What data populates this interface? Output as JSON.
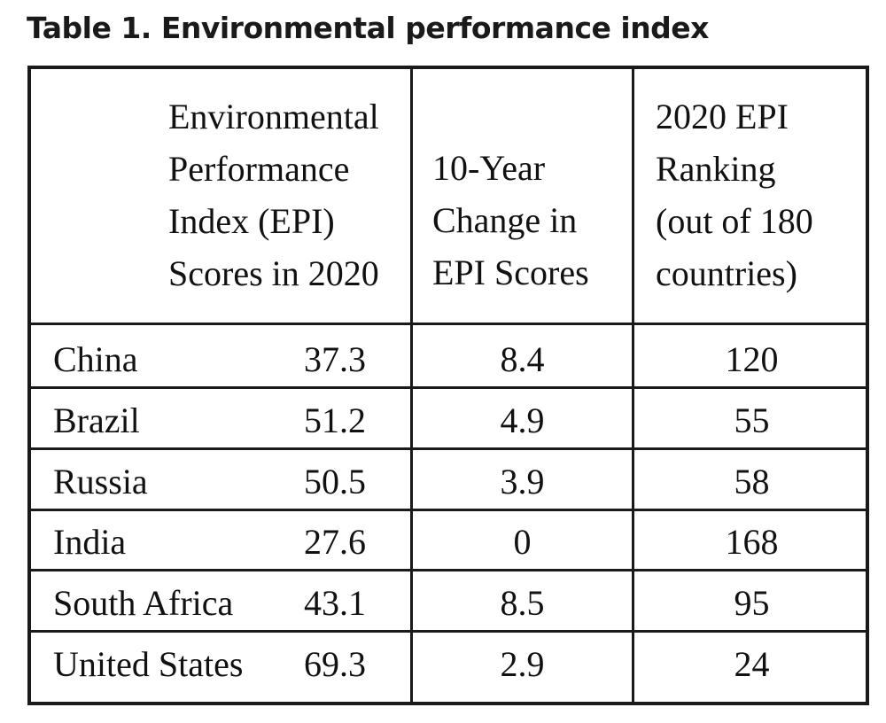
{
  "title": "Table 1. Environmental performance index",
  "columns": {
    "epi_score_header_lines": [
      "Environmental",
      "Performance",
      "Index (EPI)",
      "Scores in 2020"
    ],
    "change_header_lines": [
      "10-Year",
      "Change in",
      "EPI Scores"
    ],
    "ranking_header_lines": [
      "2020 EPI",
      "Ranking",
      "(out of 180",
      "countries)"
    ]
  },
  "rows": [
    {
      "country": "China",
      "score": "37.3",
      "change": "8.4",
      "rank": "120"
    },
    {
      "country": "Brazil",
      "score": "51.2",
      "change": "4.9",
      "rank": "55"
    },
    {
      "country": "Russia",
      "score": "50.5",
      "change": "3.9",
      "rank": "58"
    },
    {
      "country": "India",
      "score": "27.6",
      "change": "0",
      "rank": "168"
    },
    {
      "country": "South Africa",
      "score": "43.1",
      "change": "8.5",
      "rank": "95"
    },
    {
      "country": "United States",
      "score": "69.3",
      "change": "2.9",
      "rank": "24"
    }
  ]
}
